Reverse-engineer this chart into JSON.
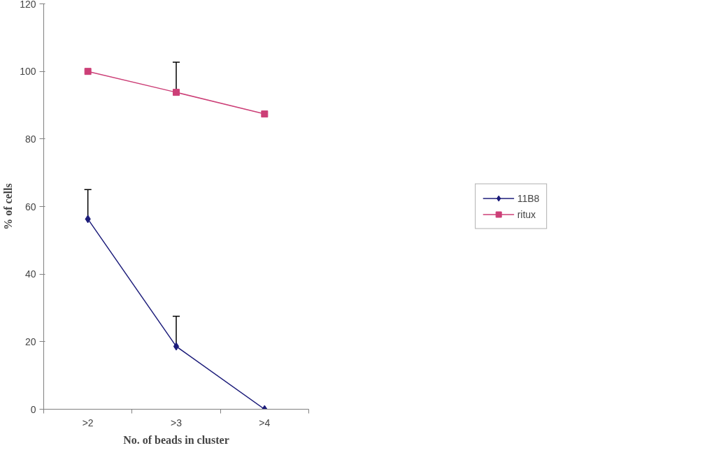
{
  "chart_data": {
    "type": "line",
    "xlabel": "No. of beads in cluster",
    "ylabel": "% of cells",
    "categories": [
      ">2",
      ">3",
      ">4"
    ],
    "series": [
      {
        "name": "11B8",
        "color": "#1c1c7a",
        "marker": "diamond",
        "values": [
          56.3,
          18.6,
          0
        ],
        "errors": [
          [
            56.3,
            65
          ],
          [
            18.6,
            27.5
          ],
          null
        ]
      },
      {
        "name": "ritux",
        "color": "#cc3f77",
        "marker": "square",
        "values": [
          100,
          93.8,
          87.4
        ],
        "errors": [
          null,
          [
            93.8,
            102.7
          ],
          null
        ]
      }
    ],
    "ylim": [
      0,
      120
    ],
    "yticks": [
      0,
      20,
      40,
      60,
      80,
      100,
      120
    ],
    "legend": "right"
  }
}
